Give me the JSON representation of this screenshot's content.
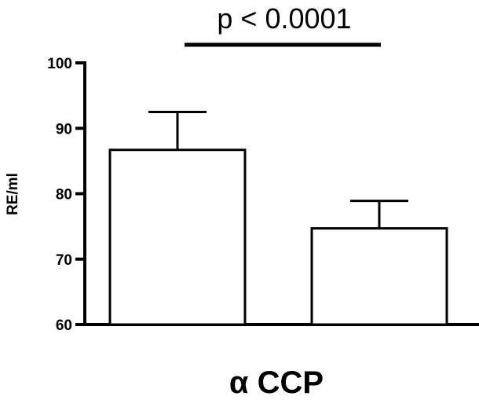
{
  "chart_data": {
    "type": "bar",
    "categories": [
      "",
      ""
    ],
    "values": [
      86.7,
      74.7
    ],
    "errors": [
      5.8,
      4.2
    ],
    "ylabel": "RE/ml",
    "xlabel": "α CCP",
    "ylim": [
      60,
      100
    ],
    "yticks": [
      60,
      70,
      80,
      90,
      100
    ],
    "grid": false,
    "annotation": "p < 0.0001",
    "colors": {
      "bar_fill": "#ffffff",
      "stroke": "#000000"
    }
  }
}
